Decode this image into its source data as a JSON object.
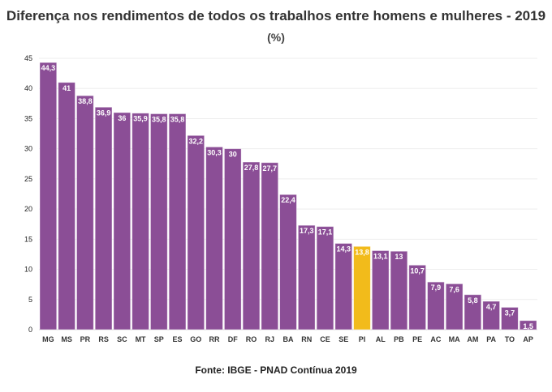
{
  "chart_data": {
    "type": "bar",
    "title": "Diferença nos rendimentos de todos os trabalhos entre homens e mulheres - 2019",
    "subtitle": "(%)",
    "source": "Fonte: IBGE - PNAD Contínua 2019",
    "xlabel": "",
    "ylabel": "",
    "ylim": [
      0,
      45
    ],
    "yticks": [
      0,
      5,
      10,
      15,
      20,
      25,
      30,
      35,
      40,
      45
    ],
    "grid": true,
    "categories": [
      "MG",
      "MS",
      "PR",
      "RS",
      "SC",
      "MT",
      "SP",
      "ES",
      "GO",
      "RR",
      "DF",
      "RO",
      "RJ",
      "BA",
      "RN",
      "CE",
      "SE",
      "PI",
      "AL",
      "PB",
      "PE",
      "AC",
      "MA",
      "AM",
      "PA",
      "TO",
      "AP"
    ],
    "values": [
      44.3,
      41,
      38.8,
      36.9,
      36,
      35.9,
      35.8,
      35.8,
      32.2,
      30.3,
      30,
      27.8,
      27.7,
      22.4,
      17.3,
      17.1,
      14.3,
      13.8,
      13.1,
      13,
      10.7,
      7.9,
      7.6,
      5.8,
      4.7,
      3.7,
      1.5
    ],
    "labels": [
      "44,3",
      "41",
      "38,8",
      "36,9",
      "36",
      "35,9",
      "35,8",
      "35,8",
      "32,2",
      "30,3",
      "30",
      "27,8",
      "27,7",
      "22,4",
      "17,3",
      "17,1",
      "14,3",
      "13,8",
      "13,1",
      "13",
      "10,7",
      "7,9",
      "7,6",
      "5,8",
      "4,7",
      "3,7",
      "1,5"
    ],
    "highlight": "PI",
    "colors": {
      "bar": "#8B4E96",
      "highlight": "#F2BB1B"
    }
  }
}
